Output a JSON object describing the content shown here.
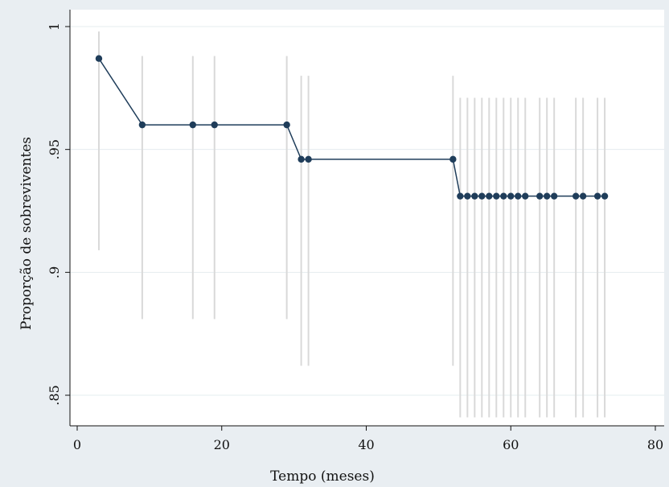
{
  "chart_data": {
    "type": "line",
    "title": "",
    "xlabel": "Tempo (meses)",
    "ylabel": "Proporção de sobreviventes",
    "xlim": [
      0,
      80
    ],
    "ylim": [
      0.84,
      1.0
    ],
    "xticks": [
      0,
      20,
      40,
      60,
      80
    ],
    "xtick_labels": [
      "0",
      "20",
      "40",
      "60",
      "80"
    ],
    "yticks": [
      0.85,
      0.9,
      0.95,
      1.0
    ],
    "ytick_labels": [
      ".85",
      ".9",
      ".95",
      "1"
    ],
    "grid": true,
    "legend": "none",
    "colors": {
      "line": "#1f3d5a",
      "marker": "#1f3d5a",
      "ci": "#d9d9d9",
      "plot_bg": "#ffffff",
      "page_bg": "#e9eef2"
    },
    "series": [
      {
        "x": [
          3,
          9,
          16,
          19,
          29,
          31,
          32,
          52,
          53,
          54,
          55,
          56,
          57,
          58,
          59,
          60,
          61,
          62,
          64,
          65,
          66,
          69,
          70,
          72,
          73
        ],
        "y": [
          0.987,
          0.96,
          0.96,
          0.96,
          0.96,
          0.946,
          0.946,
          0.946,
          0.931,
          0.931,
          0.931,
          0.931,
          0.931,
          0.931,
          0.931,
          0.931,
          0.931,
          0.931,
          0.931,
          0.931,
          0.931,
          0.931,
          0.931,
          0.931,
          0.931
        ],
        "ci_lower": [
          0.909,
          0.881,
          0.881,
          0.881,
          0.881,
          0.862,
          0.862,
          0.862,
          0.841,
          0.841,
          0.841,
          0.841,
          0.841,
          0.841,
          0.841,
          0.841,
          0.841,
          0.841,
          0.841,
          0.841,
          0.841,
          0.841,
          0.841,
          0.841,
          0.841
        ],
        "ci_upper": [
          0.998,
          0.988,
          0.988,
          0.988,
          0.988,
          0.98,
          0.98,
          0.98,
          0.971,
          0.971,
          0.971,
          0.971,
          0.971,
          0.971,
          0.971,
          0.971,
          0.971,
          0.971,
          0.971,
          0.971,
          0.971,
          0.971,
          0.971,
          0.971,
          0.971
        ]
      }
    ]
  }
}
